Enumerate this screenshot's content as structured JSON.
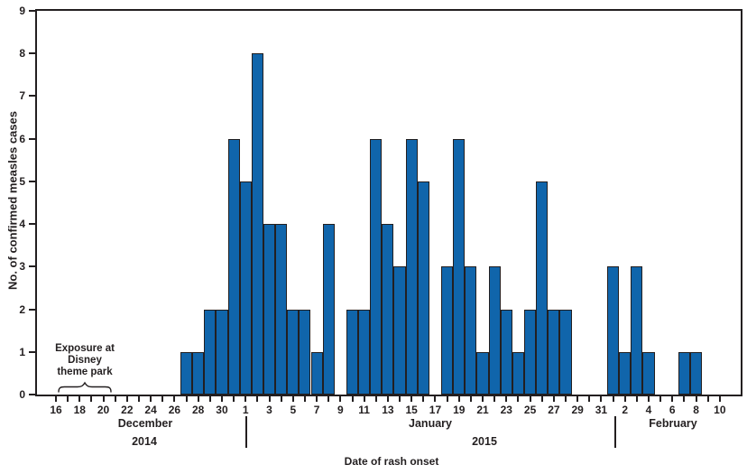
{
  "figure": {
    "y_axis_title": "No. of confirmed measles cases",
    "x_axis_title": "Date of rash onset",
    "annotation": {
      "line1": "Exposure at",
      "line2": "Disney",
      "line3": "theme park"
    },
    "month_labels": {
      "december": "December",
      "january": "January",
      "february": "February"
    },
    "year_labels": {
      "y2014": "2014",
      "y2015": "2015"
    }
  },
  "colors": {
    "bar_fill": "#1065ab",
    "bar_border": "#231f20",
    "axis": "#231f20",
    "text": "#231f20",
    "background": "#ffffff"
  },
  "chart_data": {
    "type": "bar",
    "xlabel": "Date of rash onset",
    "ylabel": "No. of confirmed measles cases",
    "ylim": [
      0,
      9
    ],
    "y_ticks": [
      0,
      1,
      2,
      3,
      4,
      5,
      6,
      7,
      8,
      9
    ],
    "x_tick_label_interval": 2,
    "x_tick_labels": [
      "16",
      "18",
      "20",
      "22",
      "24",
      "26",
      "28",
      "30",
      "1",
      "3",
      "5",
      "7",
      "9",
      "11",
      "13",
      "15",
      "17",
      "19",
      "21",
      "23",
      "25",
      "27",
      "29",
      "31",
      "2",
      "4",
      "6",
      "8",
      "10"
    ],
    "grid": false,
    "legend_position": "none",
    "annotation": {
      "text": "Exposure at Disney theme park",
      "brace_under_days": "Dec 17–20, 2014"
    },
    "months": [
      {
        "name": "December",
        "year_label": "2014",
        "start_day": 16,
        "end_day": 31,
        "values": [
          0,
          0,
          0,
          0,
          0,
          0,
          0,
          0,
          0,
          0,
          0,
          1,
          1,
          2,
          2,
          6
        ]
      },
      {
        "name": "January",
        "year_label": "2015",
        "start_day": 1,
        "end_day": 31,
        "values": [
          5,
          8,
          4,
          4,
          2,
          2,
          1,
          4,
          0,
          2,
          2,
          6,
          4,
          3,
          6,
          5,
          0,
          3,
          6,
          3,
          1,
          3,
          2,
          1,
          2,
          5,
          2,
          2,
          0,
          0,
          0
        ]
      },
      {
        "name": "February",
        "year_label": "",
        "start_day": 1,
        "end_day": 10,
        "values": [
          3,
          1,
          3,
          1,
          0,
          0,
          1,
          1,
          0,
          0
        ]
      }
    ]
  }
}
